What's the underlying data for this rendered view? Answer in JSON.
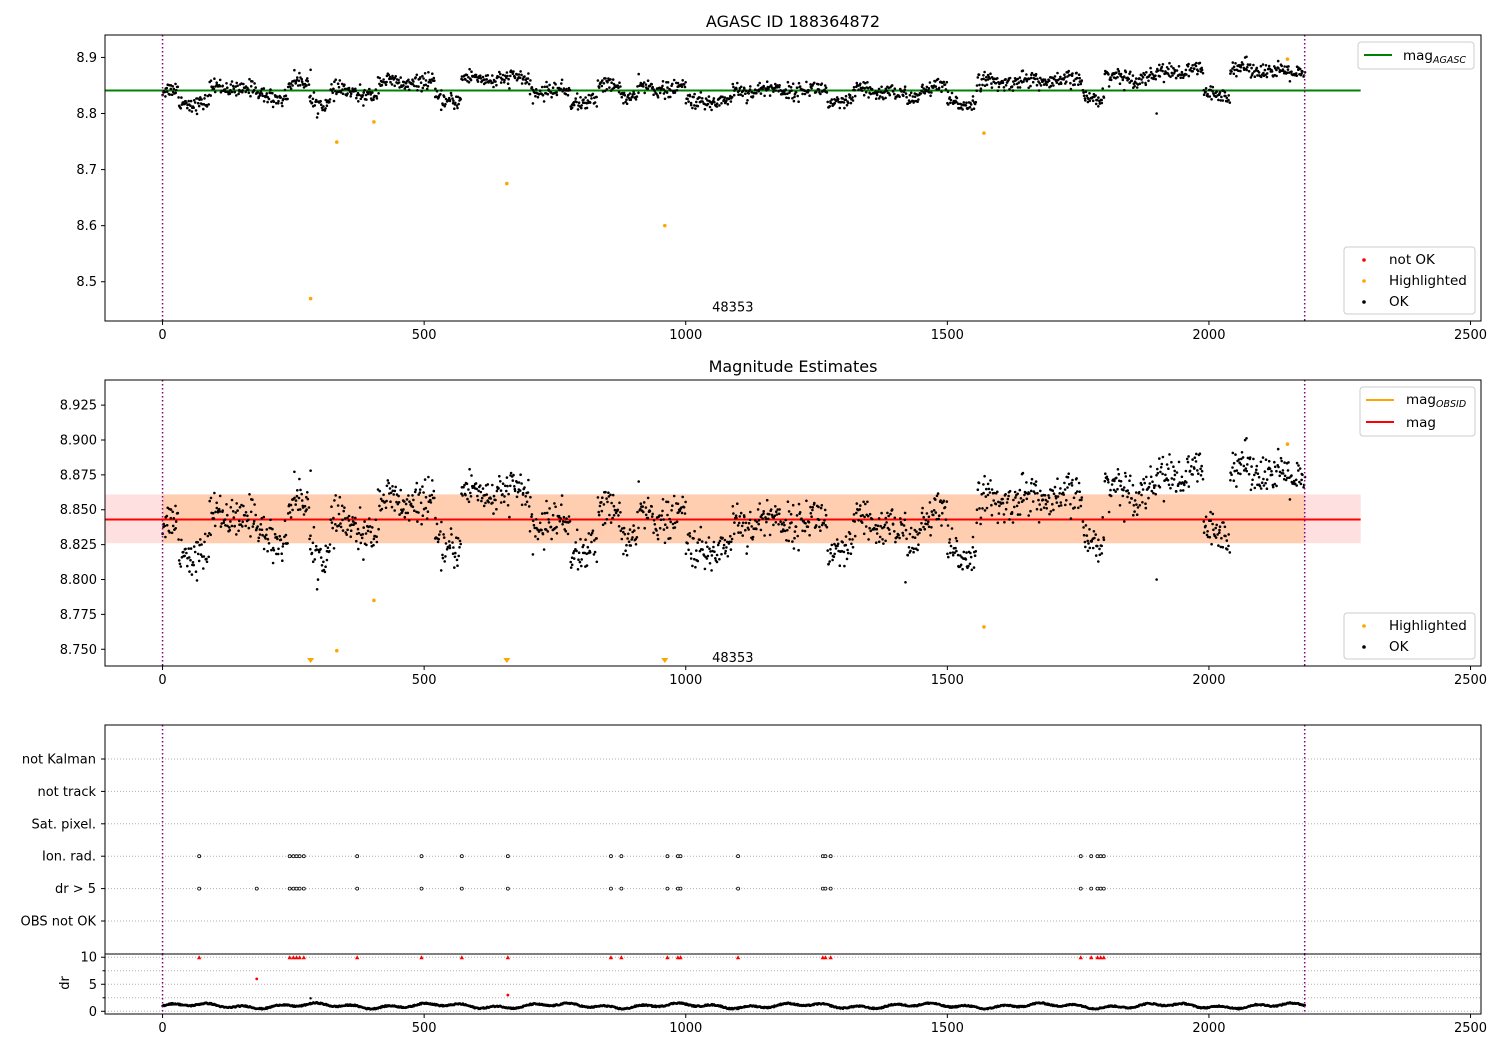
{
  "figure": {
    "background": "#ffffff"
  },
  "colors": {
    "ok": "#000000",
    "highlighted": "#ffa500",
    "not_ok": "#ff0000",
    "mag_agasc": "#008000",
    "mag_obsid": "#ffa500",
    "mag": "#ff0000",
    "obsid_band": "#ffc8a0",
    "mag_band": "#ffcccc",
    "obsid_boundary": "#800080",
    "grid": "#b0b0b0"
  },
  "chart_data": [
    {
      "type": "scatter",
      "id": "agasc",
      "title": "AGASC ID 188364872",
      "xlim": [
        -110,
        2520
      ],
      "ylim": [
        8.43,
        8.94
      ],
      "x_ticks": [
        0,
        500,
        1000,
        1500,
        2000,
        2500
      ],
      "y_ticks": [
        8.5,
        8.6,
        8.7,
        8.8,
        8.9
      ],
      "y_tick_labels": [
        "8.5",
        "8.6",
        "8.7",
        "8.8",
        "8.9"
      ],
      "obsid_boundaries": [
        0,
        2183
      ],
      "obsid_annotation": {
        "text": "48353",
        "x": 1090,
        "y": 8.447
      },
      "hlines": [
        {
          "name": "mag_AGASC",
          "y": 8.841,
          "x": [
            -110,
            2290
          ]
        }
      ],
      "legend_upper": {
        "placement": "top-right",
        "entries": [
          {
            "label": "mag",
            "sub": "AGASC",
            "kind": "line",
            "color_key": "mag_agasc"
          }
        ]
      },
      "legend_lower": {
        "placement": "bottom-right",
        "entries": [
          {
            "label": "not OK",
            "kind": "dot",
            "color_key": "not_ok"
          },
          {
            "label": "Highlighted",
            "kind": "dot",
            "color_key": "highlighted"
          },
          {
            "label": "OK",
            "kind": "dot",
            "color_key": "ok"
          }
        ]
      },
      "highlighted_points": [
        [
          283,
          8.47
        ],
        [
          333,
          8.749
        ],
        [
          404,
          8.785
        ],
        [
          658,
          8.675
        ],
        [
          960,
          8.6
        ],
        [
          1570,
          8.765
        ],
        [
          2150,
          8.897
        ]
      ],
      "not_ok_points": [],
      "ok_series": {
        "x_range": [
          0,
          2183
        ],
        "n": 1720,
        "noise": 0.007,
        "outliers": [
          [
            1900,
            8.8
          ],
          [
            283,
            8.878
          ]
        ],
        "segments": [
          [
            0,
            30,
            8.84
          ],
          [
            30,
            90,
            8.82
          ],
          [
            90,
            180,
            8.845
          ],
          [
            180,
            240,
            8.83
          ],
          [
            240,
            280,
            8.855
          ],
          [
            280,
            320,
            8.82
          ],
          [
            320,
            350,
            8.84
          ],
          [
            350,
            410,
            8.835
          ],
          [
            410,
            520,
            8.855
          ],
          [
            520,
            570,
            8.825
          ],
          [
            570,
            700,
            8.862
          ],
          [
            700,
            780,
            8.84
          ],
          [
            780,
            830,
            8.822
          ],
          [
            830,
            880,
            8.85
          ],
          [
            880,
            910,
            8.83
          ],
          [
            910,
            1000,
            8.845
          ],
          [
            1000,
            1090,
            8.822
          ],
          [
            1090,
            1270,
            8.842
          ],
          [
            1270,
            1320,
            8.82
          ],
          [
            1320,
            1400,
            8.84
          ],
          [
            1400,
            1450,
            8.83
          ],
          [
            1450,
            1500,
            8.845
          ],
          [
            1500,
            1555,
            8.82
          ],
          [
            1555,
            1610,
            8.855
          ],
          [
            1610,
            1760,
            8.858
          ],
          [
            1760,
            1800,
            8.83
          ],
          [
            1800,
            1900,
            8.865
          ],
          [
            1900,
            1990,
            8.875
          ],
          [
            1990,
            2040,
            8.835
          ],
          [
            2040,
            2120,
            8.88
          ],
          [
            2120,
            2183,
            8.872
          ]
        ]
      }
    },
    {
      "type": "scatter",
      "id": "estimates",
      "title": "Magnitude Estimates",
      "xlim": [
        -110,
        2520
      ],
      "ylim": [
        8.738,
        8.943
      ],
      "x_ticks": [
        0,
        500,
        1000,
        1500,
        2000,
        2500
      ],
      "y_ticks": [
        8.75,
        8.775,
        8.8,
        8.825,
        8.85,
        8.875,
        8.9,
        8.925
      ],
      "y_tick_labels": [
        "8.750",
        "8.775",
        "8.800",
        "8.825",
        "8.850",
        "8.875",
        "8.900",
        "8.925"
      ],
      "obsid_boundaries": [
        0,
        2183
      ],
      "obsid_annotation": {
        "text": "48353",
        "x": 1090,
        "y": 8.741
      },
      "bands": [
        {
          "name": "mag_OBSID",
          "x": [
            0,
            2183
          ],
          "y": [
            8.826,
            8.861
          ],
          "color_key": "obsid_band"
        },
        {
          "name": "mag",
          "x": [
            -110,
            2290
          ],
          "y": [
            8.826,
            8.861
          ],
          "color_key": "mag_band"
        }
      ],
      "hlines": [
        {
          "name": "mag_OBSID",
          "y": 8.843,
          "x": [
            0,
            2183
          ],
          "color_key": "mag_obsid"
        },
        {
          "name": "mag",
          "y": 8.843,
          "x": [
            -110,
            2290
          ],
          "color_key": "mag"
        }
      ],
      "legend_upper": {
        "placement": "top-right",
        "entries": [
          {
            "label": "mag",
            "sub": "OBSID",
            "kind": "line",
            "color_key": "mag_obsid"
          },
          {
            "label": "mag",
            "kind": "line",
            "color_key": "mag"
          }
        ]
      },
      "legend_lower": {
        "placement": "bottom-right",
        "entries": [
          {
            "label": "Highlighted",
            "kind": "dot",
            "color_key": "highlighted"
          },
          {
            "label": "OK",
            "kind": "dot",
            "color_key": "ok"
          }
        ]
      },
      "highlighted_points": [
        [
          333,
          8.749
        ],
        [
          404,
          8.785
        ],
        [
          1570,
          8.766
        ],
        [
          2150,
          8.897
        ]
      ],
      "offscale_markers": [
        283,
        658,
        960
      ],
      "ok_series": {
        "x_range": [
          0,
          2183
        ],
        "n": 1720,
        "noise": 0.007,
        "outliers": [
          [
            1900,
            8.8
          ],
          [
            283,
            8.878
          ],
          [
            1420,
            8.798
          ]
        ],
        "segments": [
          [
            0,
            30,
            8.84
          ],
          [
            30,
            90,
            8.82
          ],
          [
            90,
            180,
            8.845
          ],
          [
            180,
            240,
            8.83
          ],
          [
            240,
            280,
            8.855
          ],
          [
            280,
            320,
            8.82
          ],
          [
            320,
            350,
            8.84
          ],
          [
            350,
            410,
            8.835
          ],
          [
            410,
            520,
            8.855
          ],
          [
            520,
            570,
            8.825
          ],
          [
            570,
            700,
            8.862
          ],
          [
            700,
            780,
            8.84
          ],
          [
            780,
            830,
            8.822
          ],
          [
            830,
            880,
            8.85
          ],
          [
            880,
            910,
            8.83
          ],
          [
            910,
            1000,
            8.845
          ],
          [
            1000,
            1090,
            8.822
          ],
          [
            1090,
            1270,
            8.842
          ],
          [
            1270,
            1320,
            8.82
          ],
          [
            1320,
            1400,
            8.84
          ],
          [
            1400,
            1450,
            8.83
          ],
          [
            1450,
            1500,
            8.845
          ],
          [
            1500,
            1555,
            8.82
          ],
          [
            1555,
            1610,
            8.855
          ],
          [
            1610,
            1760,
            8.858
          ],
          [
            1760,
            1800,
            8.83
          ],
          [
            1800,
            1900,
            8.865
          ],
          [
            1900,
            1990,
            8.875
          ],
          [
            1990,
            2040,
            8.835
          ],
          [
            2040,
            2120,
            8.88
          ],
          [
            2120,
            2183,
            8.872
          ]
        ]
      }
    },
    {
      "type": "scatter",
      "id": "flags",
      "xlim": [
        -110,
        2520
      ],
      "categories": [
        "not Kalman",
        "not track",
        "Sat. pixel.",
        "Ion. rad.",
        "dr > 5",
        "OBS not OK"
      ],
      "obsid_boundaries": [
        0,
        2183
      ],
      "flag_points": {
        "Ion. rad.": [
          70,
          243,
          250,
          256,
          262,
          270,
          372,
          495,
          572,
          660,
          857,
          877,
          965,
          985,
          990,
          1100,
          1262,
          1267,
          1277,
          1755,
          1775,
          1787,
          1793,
          1799
        ],
        "dr > 5": [
          70,
          180,
          243,
          250,
          256,
          262,
          270,
          372,
          495,
          572,
          660,
          857,
          877,
          965,
          985,
          990,
          1100,
          1262,
          1267,
          1277,
          1755,
          1775,
          1787,
          1793,
          1799
        ]
      }
    },
    {
      "type": "scatter",
      "id": "dr",
      "xlim": [
        -110,
        2520
      ],
      "ylim": [
        -0.5,
        10.6
      ],
      "ylabel": "dr",
      "x_ticks": [
        0,
        500,
        1000,
        1500,
        2000,
        2500
      ],
      "y_ticks": [
        0,
        5,
        10
      ],
      "obsid_boundaries": [
        0,
        2183
      ],
      "ok_series": {
        "x_range": [
          0,
          2183
        ],
        "n": 1720,
        "base": 1.0,
        "amp": 0.5
      },
      "not_ok_points": [
        [
          180,
          6.0
        ],
        [
          660,
          3.0
        ]
      ],
      "clipped_markers": [
        70,
        243,
        250,
        256,
        262,
        270,
        372,
        495,
        572,
        660,
        857,
        877,
        965,
        985,
        990,
        1100,
        1262,
        1267,
        1277,
        1755,
        1775,
        1787,
        1793,
        1799
      ],
      "extra_ok_points": [
        [
          283,
          2.4
        ]
      ]
    }
  ]
}
